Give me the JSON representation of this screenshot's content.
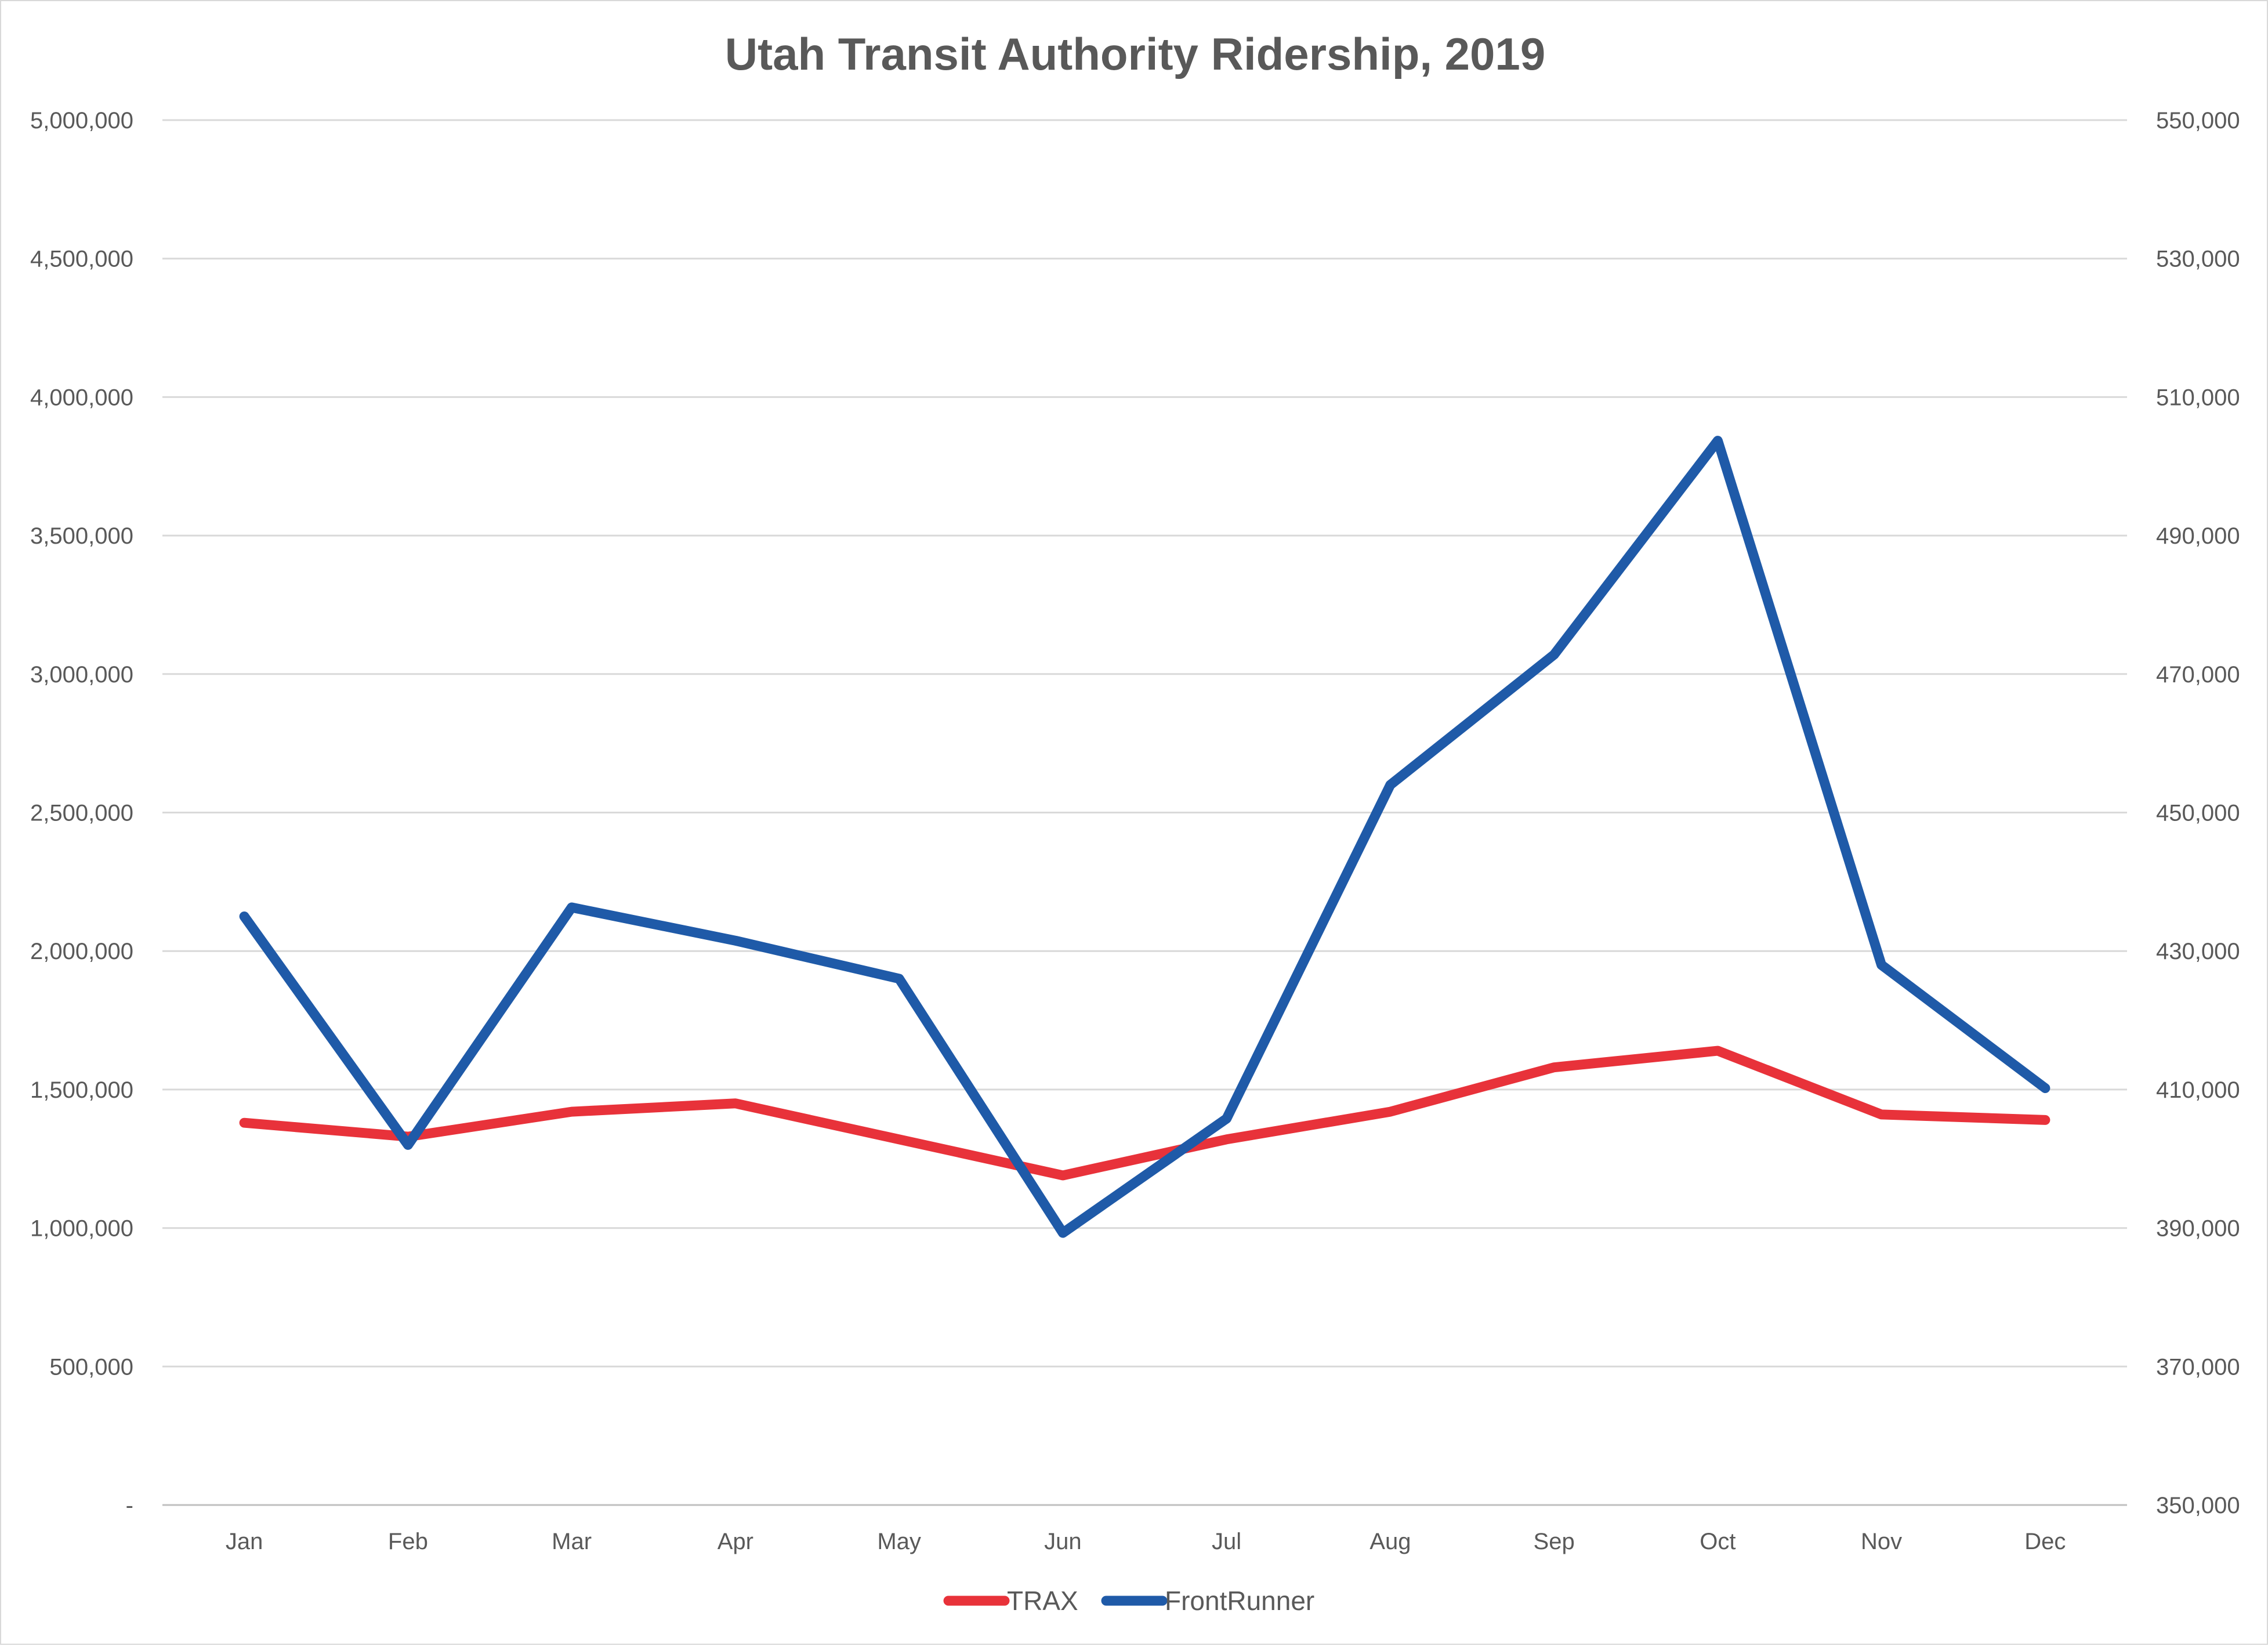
{
  "chart_data": {
    "type": "line",
    "title": "Utah Transit Authority Ridership, 2019",
    "categories": [
      "Jan",
      "Feb",
      "Mar",
      "Apr",
      "May",
      "Jun",
      "Jul",
      "Aug",
      "Sep",
      "Oct",
      "Nov",
      "Dec"
    ],
    "y_left": {
      "ylim": [
        0,
        5000000
      ],
      "ticks": [
        0,
        500000,
        1000000,
        1500000,
        2000000,
        2500000,
        3000000,
        3500000,
        4000000,
        4500000,
        5000000
      ],
      "tick_labels": [
        "-",
        "500,000",
        "1,000,000",
        "1,500,000",
        "2,000,000",
        "2,500,000",
        "3,000,000",
        "3,500,000",
        "4,000,000",
        "4,500,000",
        "5,000,000"
      ]
    },
    "y_right": {
      "ylim": [
        350000,
        550000
      ],
      "ticks": [
        350000,
        370000,
        390000,
        410000,
        430000,
        450000,
        470000,
        490000,
        510000,
        530000,
        550000
      ],
      "tick_labels": [
        "350,000",
        "370,000",
        "390,000",
        "410,000",
        "430,000",
        "450,000",
        "470,000",
        "490,000",
        "510,000",
        "530,000",
        "550,000"
      ]
    },
    "series": [
      {
        "name": "TRAX",
        "axis": "left",
        "color": "#e8323a",
        "values": [
          1380000,
          1330000,
          1420000,
          1450000,
          1320000,
          1190000,
          1320000,
          1420000,
          1580000,
          1640000,
          1410000,
          1390000
        ]
      },
      {
        "name": "FrontRunner",
        "axis": "right",
        "color": "#1f5aa8",
        "values": [
          435000,
          402000,
          436300,
          431500,
          426000,
          389300,
          405800,
          454000,
          472800,
          503700,
          428000,
          410200
        ]
      }
    ],
    "grid": true,
    "legend_position": "bottom-center"
  }
}
